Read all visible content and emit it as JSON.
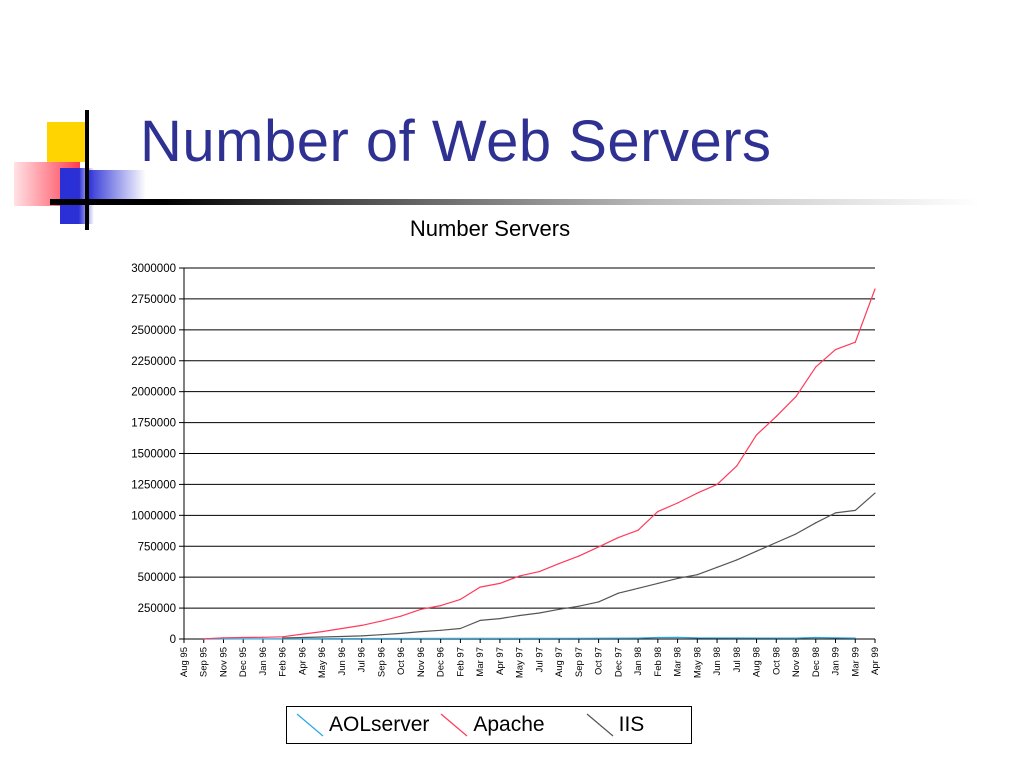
{
  "slide": {
    "title": "Number of Web Servers"
  },
  "colors": {
    "title": "#2e3192",
    "aolserver": "#2aa7e0",
    "apache": "#ff3a5a",
    "iis": "#555555"
  },
  "chart_data": {
    "type": "line",
    "title": "Number Servers",
    "xlabel": "",
    "ylabel": "",
    "ylim": [
      0,
      3000000
    ],
    "yticks": [
      0,
      250000,
      500000,
      750000,
      1000000,
      1250000,
      1500000,
      1750000,
      2000000,
      2250000,
      2500000,
      2750000,
      3000000
    ],
    "grid": "horizontal",
    "legend_position": "bottom",
    "categories": [
      "Aug 95",
      "Sep 95",
      "Nov 95",
      "Dec 95",
      "Jan 96",
      "Feb 96",
      "Apr 96",
      "May 96",
      "Jun 96",
      "Jul 96",
      "Sep 96",
      "Oct 96",
      "Nov 96",
      "Dec 96",
      "Feb 97",
      "Mar 97",
      "Apr 97",
      "May 97",
      "Jul 97",
      "Aug 97",
      "Sep 97",
      "Oct 97",
      "Dec 97",
      "Jan 98",
      "Feb 98",
      "Mar 98",
      "May 98",
      "Jun 98",
      "Jul 98",
      "Aug 98",
      "Oct 98",
      "Nov 98",
      "Dec 98",
      "Jan 99",
      "Mar 99",
      "Apr 99"
    ],
    "series": [
      {
        "name": "AOLserver",
        "x": [
          1,
          5,
          10,
          15,
          20,
          23,
          24,
          25,
          26,
          28,
          31,
          32,
          33,
          34
        ],
        "values": [
          0,
          2000,
          4000,
          5000,
          6000,
          7000,
          12000,
          13000,
          9000,
          8000,
          7000,
          12000,
          9000,
          7000
        ]
      },
      {
        "name": "Apache",
        "x": [
          1,
          2,
          3,
          4,
          5,
          6,
          7,
          8,
          9,
          10,
          11,
          12,
          13,
          14,
          15,
          16,
          17,
          18,
          19,
          20,
          21,
          22,
          23,
          24,
          25,
          26,
          27,
          28,
          29,
          30,
          31,
          32,
          33,
          34,
          35
        ],
        "values": [
          2000,
          10000,
          12000,
          14000,
          18000,
          40000,
          60000,
          85000,
          110000,
          145000,
          185000,
          240000,
          270000,
          320000,
          420000,
          450000,
          510000,
          545000,
          610000,
          670000,
          745000,
          820000,
          880000,
          1030000,
          1100000,
          1180000,
          1250000,
          1400000,
          1650000,
          1800000,
          1960000,
          2200000,
          2340000,
          2400000,
          2830000
        ]
      },
      {
        "name": "IIS",
        "x": [
          5,
          6,
          7,
          8,
          9,
          10,
          11,
          12,
          13,
          14,
          15,
          16,
          17,
          18,
          19,
          20,
          21,
          22,
          23,
          24,
          25,
          26,
          27,
          28,
          29,
          30,
          31,
          32,
          33,
          34,
          35
        ],
        "values": [
          8000,
          12000,
          16000,
          20000,
          25000,
          35000,
          45000,
          60000,
          70000,
          85000,
          150000,
          165000,
          190000,
          210000,
          240000,
          265000,
          300000,
          370000,
          410000,
          450000,
          490000,
          520000,
          580000,
          640000,
          710000,
          780000,
          850000,
          940000,
          1020000,
          1040000,
          1180000
        ]
      }
    ]
  }
}
